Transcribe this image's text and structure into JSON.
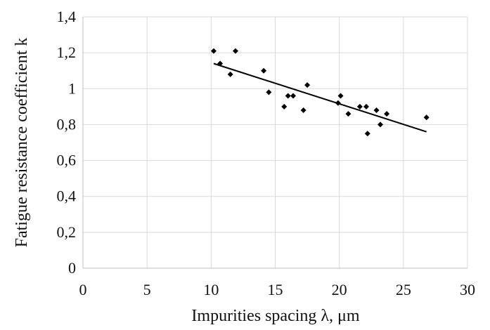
{
  "chart_data": {
    "type": "scatter",
    "title": "",
    "xlabel": "Impurities spacing λ, μm",
    "ylabel": "Fatigue resistance coefficient k",
    "xlim": [
      0,
      30
    ],
    "ylim": [
      0,
      1.4
    ],
    "x_ticks": [
      0,
      5,
      10,
      15,
      20,
      25,
      30
    ],
    "y_ticks": [
      0,
      0.2,
      0.4,
      0.6,
      0.8,
      1.0,
      1.2,
      1.4
    ],
    "x_tick_labels": [
      "0",
      "5",
      "10",
      "15",
      "20",
      "25",
      "30"
    ],
    "y_tick_labels": [
      "0",
      "0,2",
      "0,4",
      "0,6",
      "0,8",
      "1",
      "1,2",
      "1,4"
    ],
    "grid": true,
    "legend": "none",
    "marker_color": "#000000",
    "grid_color": "#d9d9d9",
    "series": [
      {
        "points": [
          {
            "x": 10.2,
            "y": 1.21
          },
          {
            "x": 10.7,
            "y": 1.14
          },
          {
            "x": 11.5,
            "y": 1.08
          },
          {
            "x": 11.9,
            "y": 1.21
          },
          {
            "x": 14.1,
            "y": 1.1
          },
          {
            "x": 14.5,
            "y": 0.98
          },
          {
            "x": 15.7,
            "y": 0.9
          },
          {
            "x": 16.0,
            "y": 0.96
          },
          {
            "x": 16.4,
            "y": 0.96
          },
          {
            "x": 17.2,
            "y": 0.88
          },
          {
            "x": 17.5,
            "y": 1.02
          },
          {
            "x": 19.9,
            "y": 0.92
          },
          {
            "x": 20.1,
            "y": 0.96
          },
          {
            "x": 20.7,
            "y": 0.86
          },
          {
            "x": 21.6,
            "y": 0.9
          },
          {
            "x": 22.1,
            "y": 0.9
          },
          {
            "x": 22.2,
            "y": 0.75
          },
          {
            "x": 22.9,
            "y": 0.88
          },
          {
            "x": 23.2,
            "y": 0.8
          },
          {
            "x": 23.7,
            "y": 0.86
          },
          {
            "x": 26.8,
            "y": 0.84
          }
        ]
      }
    ],
    "trendline": {
      "type": "linear",
      "x": [
        10.2,
        26.8
      ],
      "y": [
        1.14,
        0.76
      ]
    }
  }
}
